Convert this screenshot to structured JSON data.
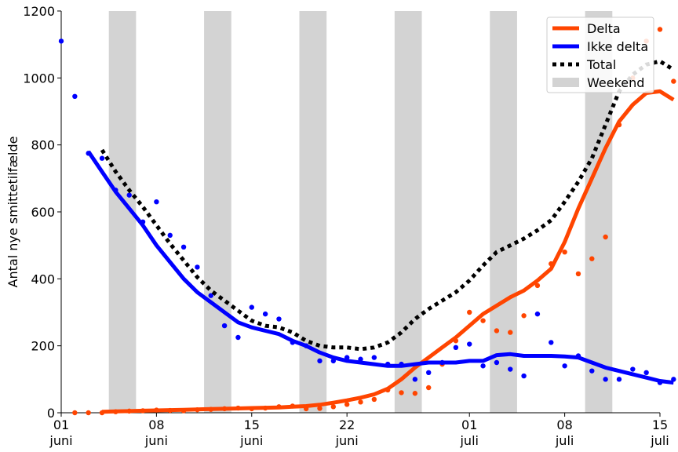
{
  "chart_data": {
    "type": "line",
    "title": "",
    "xlabel": "",
    "ylabel": "Antal nye smittetilfælde",
    "x_range_days": [
      0,
      44
    ],
    "ylim": [
      0,
      1200
    ],
    "yticks": [
      0,
      200,
      400,
      600,
      800,
      1000,
      1200
    ],
    "xticks": [
      {
        "day": 0,
        "line1": "01",
        "line2": "juni"
      },
      {
        "day": 7,
        "line1": "08",
        "line2": "juni"
      },
      {
        "day": 14,
        "line1": "15",
        "line2": "juni"
      },
      {
        "day": 21,
        "line1": "22",
        "line2": "juni"
      },
      {
        "day": 30,
        "line1": "01",
        "line2": "juli"
      },
      {
        "day": 37,
        "line1": "08",
        "line2": "juli"
      },
      {
        "day": 44,
        "line1": "15",
        "line2": "juli"
      }
    ],
    "weekends": [
      [
        3.5,
        5.5
      ],
      [
        10.5,
        12.5
      ],
      [
        17.5,
        19.5
      ],
      [
        24.5,
        26.5
      ],
      [
        31.5,
        33.5
      ],
      [
        38.5,
        40.5
      ]
    ],
    "legend": {
      "position": "top-right",
      "entries": [
        {
          "label": "Delta",
          "key": "delta"
        },
        {
          "label": "Ikke delta",
          "key": "ikke_delta"
        },
        {
          "label": "Total",
          "key": "total"
        },
        {
          "label": "Weekend",
          "key": "weekend"
        }
      ]
    },
    "colors": {
      "delta": "#ff4500",
      "ikke_delta": "#0000ff",
      "total": "#000000",
      "weekend": "#d3d3d3"
    },
    "series": [
      {
        "name": "Delta",
        "key": "delta",
        "points_y": [
          null,
          0,
          0,
          0,
          3,
          5,
          6,
          8,
          7,
          6,
          9,
          10,
          12,
          14,
          12,
          14,
          18,
          20,
          12,
          13,
          18,
          25,
          32,
          40,
          68,
          60,
          58,
          75,
          145,
          215,
          300,
          275,
          245,
          240,
          290,
          380,
          445,
          480,
          415,
          460,
          525,
          860,
          1000,
          1110,
          1145,
          990
        ],
        "smooth_y": [
          null,
          null,
          null,
          3,
          4,
          5,
          6,
          7,
          8,
          9,
          10,
          11,
          12,
          13,
          14,
          15,
          16,
          18,
          20,
          24,
          30,
          37,
          45,
          55,
          72,
          100,
          135,
          165,
          195,
          225,
          260,
          295,
          320,
          345,
          365,
          395,
          430,
          510,
          610,
          700,
          790,
          870,
          920,
          955,
          960,
          935
        ]
      },
      {
        "name": "Ikke delta",
        "key": "ikke_delta",
        "points_y": [
          1110,
          945,
          775,
          760,
          665,
          650,
          570,
          630,
          530,
          495,
          435,
          350,
          260,
          225,
          315,
          295,
          280,
          210,
          200,
          155,
          155,
          165,
          160,
          165,
          145,
          145,
          100,
          120,
          150,
          195,
          205,
          140,
          150,
          130,
          110,
          295,
          210,
          140,
          170,
          125,
          100,
          100,
          130,
          120,
          90,
          100
        ],
        "smooth_y": [
          null,
          null,
          780,
          720,
          660,
          610,
          560,
          500,
          450,
          400,
          360,
          330,
          300,
          270,
          255,
          245,
          235,
          215,
          200,
          180,
          165,
          155,
          150,
          145,
          140,
          140,
          145,
          150,
          150,
          150,
          155,
          155,
          172,
          175,
          170,
          170,
          170,
          168,
          165,
          150,
          135,
          125,
          115,
          105,
          95,
          90
        ]
      },
      {
        "name": "Total",
        "key": "total",
        "smooth_y": [
          null,
          null,
          null,
          785,
          720,
          665,
          615,
          560,
          505,
          455,
          405,
          365,
          335,
          305,
          275,
          260,
          255,
          240,
          215,
          200,
          195,
          195,
          190,
          195,
          210,
          240,
          280,
          310,
          335,
          360,
          395,
          440,
          480,
          500,
          520,
          545,
          575,
          630,
          690,
          760,
          860,
          960,
          1010,
          1040,
          1050,
          1025
        ]
      }
    ]
  }
}
